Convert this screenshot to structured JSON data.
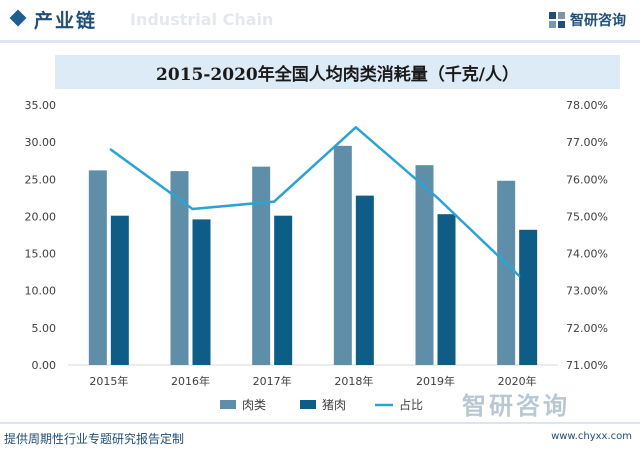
{
  "header": {
    "title": "产业链",
    "watermark": "Industrial Chain",
    "brand": "智研咨询"
  },
  "footer": {
    "text": "提供周期性行业专题研究报告定制",
    "brand": "智研咨询",
    "url": "www.chyxx.com"
  },
  "colors": {
    "meat": "#5f8fa8",
    "pork": "#0d5d86",
    "share": "#2aa3d6"
  },
  "chart_data": {
    "type": "bar",
    "title": "2015-2020年全国人均肉类消耗量（千克/人）",
    "categories": [
      "2015年",
      "2016年",
      "2017年",
      "2018年",
      "2019年",
      "2020年"
    ],
    "series": [
      {
        "name": "肉类",
        "kind": "bar",
        "axis": "left",
        "values": [
          26.2,
          26.1,
          26.7,
          29.5,
          26.9,
          24.8
        ]
      },
      {
        "name": "猪肉",
        "kind": "bar",
        "axis": "left",
        "values": [
          20.1,
          19.6,
          20.1,
          22.8,
          20.3,
          18.2
        ]
      },
      {
        "name": "占比",
        "kind": "line",
        "axis": "right",
        "values": [
          76.8,
          75.2,
          75.4,
          77.4,
          75.5,
          73.4
        ]
      }
    ],
    "y_left": {
      "min": 0,
      "max": 35,
      "step": 5,
      "tick_labels": [
        "0.00",
        "5.00",
        "10.00",
        "15.00",
        "20.00",
        "25.00",
        "30.00",
        "35.00"
      ]
    },
    "y_right": {
      "min": 71,
      "max": 78,
      "step": 1,
      "tick_labels": [
        "71.00%",
        "72.00%",
        "73.00%",
        "74.00%",
        "75.00%",
        "76.00%",
        "77.00%",
        "78.00%"
      ]
    },
    "legend_position": "bottom",
    "grid": false
  }
}
